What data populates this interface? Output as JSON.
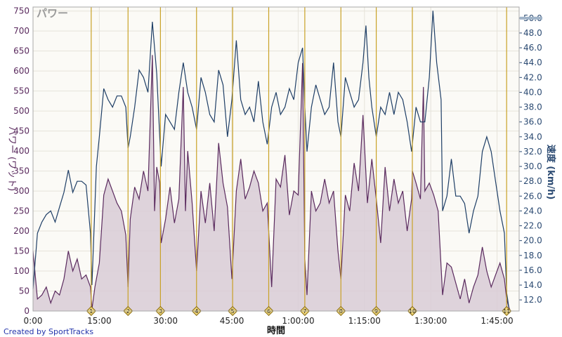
{
  "chart_data": {
    "type": "area+line",
    "title": "パワー",
    "xlabel": "時間",
    "ylabel_left": "パワー (ワット)",
    "ylabel_right": "速度 (km/h)",
    "credit": "Created by SportTracks",
    "x_range_seconds": [
      0,
      6600
    ],
    "x_ticks": [
      {
        "t": 0,
        "label": "0:00"
      },
      {
        "t": 900,
        "label": "15:00"
      },
      {
        "t": 1800,
        "label": "30:00"
      },
      {
        "t": 2700,
        "label": "45:00"
      },
      {
        "t": 3600,
        "label": "1:00:00"
      },
      {
        "t": 4500,
        "label": "1:15:00"
      },
      {
        "t": 5400,
        "label": "1:30:00"
      },
      {
        "t": 6300,
        "label": "1:45:00"
      }
    ],
    "left_axis": {
      "range": [
        0,
        760
      ],
      "ticks": [
        "0",
        "50",
        "100",
        "150",
        "200",
        "250",
        "300",
        "350",
        "400",
        "450",
        "500",
        "550",
        "600",
        "650",
        "700",
        "750"
      ]
    },
    "right_axis": {
      "range": [
        10.5,
        51.5
      ],
      "ticks": [
        "12.0",
        "14.0",
        "16.0",
        "18.0",
        "20.0",
        "22.0",
        "24.0",
        "26.0",
        "28.0",
        "30.0",
        "32.0",
        "34.0",
        "36.0",
        "38.0",
        "40.0",
        "42.0",
        "44.0",
        "46.0",
        "48.0",
        "50.0"
      ]
    },
    "lap_markers": [
      {
        "t": 790,
        "label": "1"
      },
      {
        "t": 1290,
        "label": "2"
      },
      {
        "t": 1730,
        "label": "3"
      },
      {
        "t": 2220,
        "label": "4"
      },
      {
        "t": 2710,
        "label": "5"
      },
      {
        "t": 3200,
        "label": "6"
      },
      {
        "t": 3690,
        "label": "7"
      },
      {
        "t": 4180,
        "label": "8"
      },
      {
        "t": 4660,
        "label": "9"
      },
      {
        "t": 5150,
        "label": "10"
      },
      {
        "t": 6430,
        "label": "11"
      }
    ],
    "series": [
      {
        "name": "パワー",
        "axis": "left",
        "color": "#5a2a5e",
        "fill": "#d8cbd6",
        "points": [
          [
            0,
            150
          ],
          [
            60,
            30
          ],
          [
            120,
            40
          ],
          [
            180,
            60
          ],
          [
            240,
            20
          ],
          [
            300,
            50
          ],
          [
            360,
            40
          ],
          [
            420,
            80
          ],
          [
            480,
            150
          ],
          [
            540,
            100
          ],
          [
            600,
            130
          ],
          [
            660,
            80
          ],
          [
            720,
            90
          ],
          [
            780,
            60
          ],
          [
            800,
            5
          ],
          [
            840,
            60
          ],
          [
            900,
            120
          ],
          [
            960,
            290
          ],
          [
            1020,
            330
          ],
          [
            1080,
            300
          ],
          [
            1140,
            270
          ],
          [
            1200,
            250
          ],
          [
            1260,
            190
          ],
          [
            1290,
            60
          ],
          [
            1320,
            230
          ],
          [
            1380,
            310
          ],
          [
            1440,
            280
          ],
          [
            1500,
            350
          ],
          [
            1560,
            300
          ],
          [
            1620,
            640
          ],
          [
            1650,
            250
          ],
          [
            1680,
            360
          ],
          [
            1720,
            320
          ],
          [
            1740,
            170
          ],
          [
            1800,
            230
          ],
          [
            1860,
            310
          ],
          [
            1920,
            220
          ],
          [
            1980,
            280
          ],
          [
            2040,
            560
          ],
          [
            2070,
            250
          ],
          [
            2100,
            400
          ],
          [
            2160,
            270
          ],
          [
            2220,
            100
          ],
          [
            2280,
            300
          ],
          [
            2340,
            220
          ],
          [
            2400,
            320
          ],
          [
            2460,
            200
          ],
          [
            2520,
            420
          ],
          [
            2580,
            320
          ],
          [
            2640,
            260
          ],
          [
            2700,
            80
          ],
          [
            2760,
            300
          ],
          [
            2820,
            380
          ],
          [
            2880,
            280
          ],
          [
            2940,
            310
          ],
          [
            3000,
            350
          ],
          [
            3060,
            320
          ],
          [
            3120,
            250
          ],
          [
            3180,
            270
          ],
          [
            3240,
            60
          ],
          [
            3300,
            330
          ],
          [
            3360,
            310
          ],
          [
            3420,
            390
          ],
          [
            3480,
            240
          ],
          [
            3540,
            300
          ],
          [
            3600,
            290
          ],
          [
            3660,
            620
          ],
          [
            3690,
            130
          ],
          [
            3720,
            40
          ],
          [
            3780,
            300
          ],
          [
            3840,
            250
          ],
          [
            3900,
            270
          ],
          [
            3960,
            330
          ],
          [
            4020,
            270
          ],
          [
            4080,
            300
          ],
          [
            4140,
            150
          ],
          [
            4180,
            80
          ],
          [
            4240,
            290
          ],
          [
            4300,
            250
          ],
          [
            4360,
            370
          ],
          [
            4420,
            300
          ],
          [
            4480,
            490
          ],
          [
            4540,
            270
          ],
          [
            4600,
            380
          ],
          [
            4660,
            280
          ],
          [
            4720,
            170
          ],
          [
            4780,
            360
          ],
          [
            4840,
            250
          ],
          [
            4900,
            330
          ],
          [
            4960,
            270
          ],
          [
            5020,
            300
          ],
          [
            5080,
            200
          ],
          [
            5140,
            280
          ],
          [
            5150,
            350
          ],
          [
            5200,
            320
          ],
          [
            5260,
            280
          ],
          [
            5300,
            560
          ],
          [
            5320,
            300
          ],
          [
            5380,
            320
          ],
          [
            5440,
            290
          ],
          [
            5500,
            250
          ],
          [
            5560,
            40
          ],
          [
            5620,
            120
          ],
          [
            5680,
            110
          ],
          [
            5740,
            70
          ],
          [
            5800,
            30
          ],
          [
            5860,
            80
          ],
          [
            5920,
            20
          ],
          [
            5980,
            60
          ],
          [
            6040,
            90
          ],
          [
            6100,
            160
          ],
          [
            6160,
            100
          ],
          [
            6220,
            60
          ],
          [
            6280,
            90
          ],
          [
            6340,
            120
          ],
          [
            6400,
            80
          ],
          [
            6430,
            30
          ],
          [
            6460,
            10
          ],
          [
            6480,
            0
          ]
        ]
      },
      {
        "name": "速度",
        "axis": "right",
        "color": "#1e3e66",
        "points": [
          [
            0,
            13.5
          ],
          [
            60,
            21
          ],
          [
            120,
            22.5
          ],
          [
            180,
            23.5
          ],
          [
            240,
            24
          ],
          [
            300,
            22.5
          ],
          [
            360,
            24.5
          ],
          [
            420,
            26.5
          ],
          [
            480,
            29.5
          ],
          [
            540,
            26.5
          ],
          [
            600,
            28
          ],
          [
            660,
            28
          ],
          [
            720,
            27.5
          ],
          [
            780,
            21
          ],
          [
            800,
            14
          ],
          [
            860,
            30
          ],
          [
            900,
            34
          ],
          [
            960,
            40.5
          ],
          [
            1020,
            39
          ],
          [
            1080,
            38
          ],
          [
            1140,
            39.5
          ],
          [
            1200,
            39.5
          ],
          [
            1260,
            38
          ],
          [
            1290,
            32.5
          ],
          [
            1320,
            34
          ],
          [
            1380,
            38
          ],
          [
            1440,
            43
          ],
          [
            1500,
            42
          ],
          [
            1560,
            40
          ],
          [
            1620,
            49.5
          ],
          [
            1680,
            42.5
          ],
          [
            1740,
            30
          ],
          [
            1800,
            37
          ],
          [
            1860,
            36
          ],
          [
            1920,
            35
          ],
          [
            1980,
            40
          ],
          [
            2040,
            44
          ],
          [
            2100,
            40
          ],
          [
            2160,
            38
          ],
          [
            2220,
            35
          ],
          [
            2280,
            42
          ],
          [
            2340,
            40
          ],
          [
            2400,
            37
          ],
          [
            2460,
            36
          ],
          [
            2520,
            43
          ],
          [
            2580,
            41
          ],
          [
            2640,
            34
          ],
          [
            2700,
            39
          ],
          [
            2760,
            47
          ],
          [
            2820,
            39
          ],
          [
            2880,
            37
          ],
          [
            2940,
            38
          ],
          [
            3000,
            36
          ],
          [
            3060,
            41.5
          ],
          [
            3120,
            36
          ],
          [
            3180,
            33
          ],
          [
            3240,
            38
          ],
          [
            3300,
            40
          ],
          [
            3360,
            37
          ],
          [
            3420,
            38
          ],
          [
            3480,
            40.5
          ],
          [
            3540,
            39
          ],
          [
            3600,
            44
          ],
          [
            3660,
            46
          ],
          [
            3690,
            38
          ],
          [
            3720,
            32
          ],
          [
            3780,
            38
          ],
          [
            3840,
            41
          ],
          [
            3900,
            39
          ],
          [
            3960,
            37
          ],
          [
            4020,
            38
          ],
          [
            4080,
            44
          ],
          [
            4140,
            36
          ],
          [
            4180,
            34
          ],
          [
            4240,
            42
          ],
          [
            4300,
            40
          ],
          [
            4360,
            38
          ],
          [
            4420,
            39
          ],
          [
            4480,
            44
          ],
          [
            4520,
            49
          ],
          [
            4560,
            42
          ],
          [
            4600,
            38
          ],
          [
            4660,
            34
          ],
          [
            4720,
            38
          ],
          [
            4780,
            37
          ],
          [
            4840,
            40
          ],
          [
            4900,
            37
          ],
          [
            4960,
            40
          ],
          [
            5020,
            39
          ],
          [
            5080,
            36
          ],
          [
            5140,
            32
          ],
          [
            5200,
            38
          ],
          [
            5260,
            36
          ],
          [
            5320,
            36
          ],
          [
            5380,
            42
          ],
          [
            5430,
            51
          ],
          [
            5480,
            44
          ],
          [
            5540,
            39
          ],
          [
            5560,
            24
          ],
          [
            5620,
            26
          ],
          [
            5680,
            31
          ],
          [
            5740,
            26
          ],
          [
            5800,
            26
          ],
          [
            5860,
            25
          ],
          [
            5920,
            21
          ],
          [
            5980,
            24
          ],
          [
            6040,
            26
          ],
          [
            6100,
            32
          ],
          [
            6160,
            34
          ],
          [
            6220,
            32
          ],
          [
            6280,
            28
          ],
          [
            6340,
            24
          ],
          [
            6400,
            21
          ],
          [
            6430,
            13
          ],
          [
            6460,
            11
          ]
        ]
      }
    ]
  }
}
